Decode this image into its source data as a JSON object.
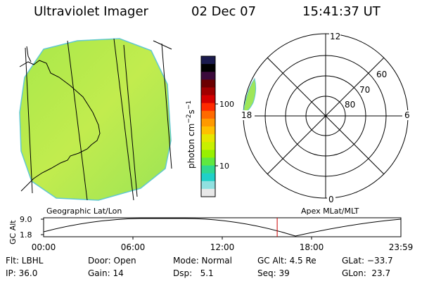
{
  "header": {
    "instrument": "Ultraviolet Imager",
    "date": "02 Dec 07",
    "time": "15:41:37 UT"
  },
  "colorbar": {
    "unit_label": "photon cm",
    "unit_exp1": "−2",
    "unit_s": "s",
    "unit_exp2": "−1",
    "tick_100": "100",
    "tick_10": "10",
    "colors": [
      "#1a1a4d",
      "#000000",
      "#3b0a3b",
      "#6b0000",
      "#a00000",
      "#d40000",
      "#ff2a00",
      "#ff6a00",
      "#ff9900",
      "#ffc000",
      "#e6e600",
      "#c8f000",
      "#98f000",
      "#60e840",
      "#30d890",
      "#20d0c8",
      "#90e0e0",
      "#e8e8e8"
    ]
  },
  "geo_panel": {
    "label": "Geographic Lat/Lon",
    "fill_color": "#b6ea4a"
  },
  "polar_panel": {
    "label": "Apex MLat/MLT",
    "mlt_12": "12",
    "mlt_18": "18",
    "mlt_6": "6",
    "mlt_0": "0",
    "lat_60": "60",
    "lat_70": "70",
    "lat_80": "80"
  },
  "altitude_panel": {
    "y_label": "GC Alt",
    "y_top": "9.0",
    "y_bottom": "1.8",
    "x_ticks": [
      "00:00",
      "06:00",
      "12:00",
      "18:00",
      "23:59"
    ],
    "marker_time_hours": 15.69
  },
  "status": {
    "flt": "Flt: LBHL",
    "ip": "IP: 36.0",
    "door": "Door: Open",
    "gain": "Gain: 14",
    "mode": "Mode: Normal",
    "dsp": "Dsp:   5.1",
    "gc_alt": "GC Alt: 4.5 Re",
    "seq": "Seq: 39",
    "glat": "GLat: −33.7",
    "glon": "GLon:  23.7"
  }
}
